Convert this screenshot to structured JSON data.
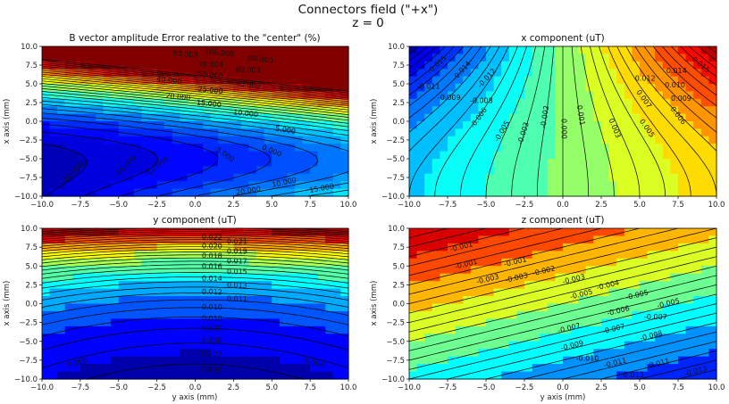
{
  "figure": {
    "suptitle_line1": "Connectors field (\"+x\")",
    "suptitle_line2": "z = 0"
  },
  "chart_data": [
    {
      "type": "contour",
      "title": "B vector amplitude Error relative to the \"center\" (%)",
      "title_text": "B vector amplitude Error realative to the \"center\" (%)",
      "xlabel": "",
      "ylabel": "x axis (mm)",
      "xlim": [
        -10,
        10
      ],
      "ylim": [
        -10,
        10
      ],
      "xticks": [
        "−10.0",
        "−7.5",
        "−5.0",
        "−2.5",
        "0.0",
        "2.5",
        "5.0",
        "7.5",
        "10.0"
      ],
      "yticks": [
        "−10.0",
        "−7.5",
        "−5.0",
        "−2.5",
        "0.0",
        "2.5",
        "5.0",
        "7.5",
        "10.0"
      ],
      "levels_range": [
        -25,
        110
      ],
      "line_step": 5,
      "fill_step": 5,
      "colormap": "jet",
      "contour_labels": [
        {
          "text": "100.000",
          "x": 1,
          "y": 9.7
        },
        {
          "text": "90.000",
          "x": 1,
          "y": 9.0
        },
        {
          "text": "80.000",
          "x": 1,
          "y": 8.3
        },
        {
          "text": "70.000",
          "x": 1,
          "y": 7.6
        },
        {
          "text": "60.000",
          "x": 1,
          "y": 6.9
        },
        {
          "text": "50.000",
          "x": 1,
          "y": 6.2
        },
        {
          "text": "40.000",
          "x": -1.7,
          "y": 5.5
        },
        {
          "text": "30.000",
          "x": 1,
          "y": 4.9
        },
        {
          "text": "25.000",
          "x": 1,
          "y": 4.2
        },
        {
          "text": "20.000",
          "x": -0.3,
          "y": 3.3
        },
        {
          "text": "15.000",
          "x": 0.9,
          "y": 2.4
        },
        {
          "text": "10.000",
          "x": 3.3,
          "y": 1.1
        },
        {
          "text": "5.000",
          "x": 5.9,
          "y": -1.1
        },
        {
          "text": "0.000",
          "x": 5.0,
          "y": -3.9
        },
        {
          "text": "-5.000",
          "x": 1.9,
          "y": -4.3
        },
        {
          "text": "-10.000",
          "x": -2.5,
          "y": -6.0
        },
        {
          "text": "-15.000",
          "x": -4.6,
          "y": -6.0
        },
        {
          "text": "-20.000",
          "x": -8.0,
          "y": -6.9
        },
        {
          "text": "10.000",
          "x": 5.8,
          "y": -8.1
        },
        {
          "text": "15.000",
          "x": 5.8,
          "y": -8.9
        },
        {
          "text": "20.000",
          "x": 5.8,
          "y": -9.7
        }
      ]
    },
    {
      "type": "contour",
      "title": "x component (uT)",
      "title_text": "x component (uT)",
      "xlabel": "",
      "ylabel": "x axis (mm)",
      "xlim": [
        -10,
        10
      ],
      "ylim": [
        -10,
        10
      ],
      "xticks": [
        "−10.0",
        "−7.5",
        "−5.0",
        "−2.5",
        "0.0",
        "2.5",
        "5.0",
        "7.5",
        "10.0"
      ],
      "yticks": [
        "−10.0",
        "−7.5",
        "−5.0",
        "−2.5",
        "0.0",
        "2.5",
        "5.0",
        "7.5",
        "10.0"
      ],
      "levels_range": [
        -0.018,
        0.018
      ],
      "line_step": 0.001,
      "fill_step": 0.0025,
      "colormap": "jet",
      "contour_labels": [
        {
          "text": "-0.015",
          "x": -8.2,
          "y": 7.6
        },
        {
          "text": "-0.014",
          "x": -6.6,
          "y": 6.8
        },
        {
          "text": "-0.012",
          "x": -6.6,
          "y": 5.8
        },
        {
          "text": "-0.011",
          "x": -6.3,
          "y": 4.7
        },
        {
          "text": "-0.009",
          "x": -7.4,
          "y": 3.2
        },
        {
          "text": "-0.008",
          "x": -5.3,
          "y": 2.8
        },
        {
          "text": "-0.006",
          "x": -5.5,
          "y": 0.5
        },
        {
          "text": "-0.005",
          "x": -4.8,
          "y": -1.3
        },
        {
          "text": "-0.003",
          "x": -2.6,
          "y": -1.6
        },
        {
          "text": "-0.002",
          "x": -1.2,
          "y": 0.6
        },
        {
          "text": "0.000",
          "x": 0.1,
          "y": -1.0
        },
        {
          "text": "0.001",
          "x": 1.2,
          "y": 0.8
        },
        {
          "text": "0.003",
          "x": 3.4,
          "y": -0.9
        },
        {
          "text": "0.005",
          "x": 5.5,
          "y": -0.9
        },
        {
          "text": "0.006",
          "x": 5.9,
          "y": 0.8
        },
        {
          "text": "0.007",
          "x": 5.3,
          "y": 3.0
        },
        {
          "text": "0.009",
          "x": 7.7,
          "y": 3.1
        },
        {
          "text": "0.010",
          "x": 7.3,
          "y": 4.9
        },
        {
          "text": "0.012",
          "x": 7.8,
          "y": 5.8
        },
        {
          "text": "0.014",
          "x": 7.4,
          "y": 6.8
        },
        {
          "text": "0.015",
          "x": 9.0,
          "y": 7.6
        }
      ]
    },
    {
      "type": "contour",
      "title": "y component (uT)",
      "title_text": "y component (uT)",
      "xlabel": "y axis (mm)",
      "ylabel": "x axis (mm)",
      "xlim": [
        -10,
        10
      ],
      "ylim": [
        -10,
        10
      ],
      "xticks": [
        "−10.0",
        "−7.5",
        "−5.0",
        "−2.5",
        "0.0",
        "2.5",
        "5.0",
        "7.5",
        "10.0"
      ],
      "yticks": [
        "−10.0",
        "−7.5",
        "−5.0",
        "−2.5",
        "0.0",
        "2.5",
        "5.0",
        "7.5",
        "10.0"
      ],
      "levels_range": [
        0.004,
        0.034
      ],
      "line_step": 0.001,
      "fill_step": 0.0025,
      "colormap": "jet",
      "contour_labels": [
        {
          "text": "0.006",
          "x": 1.1,
          "y": -8.7
        },
        {
          "text": "0.007",
          "x": 1.1,
          "y": -6.6
        },
        {
          "text": "0.008",
          "x": 1.1,
          "y": -4.8
        },
        {
          "text": "0.009",
          "x": 1.1,
          "y": -3.2
        },
        {
          "text": "0.010",
          "x": 1.1,
          "y": -1.9
        },
        {
          "text": "0.010",
          "x": 1.1,
          "y": -0.4
        },
        {
          "text": "0.011",
          "x": 1.1,
          "y": 0.7
        },
        {
          "text": "0.012",
          "x": 1.1,
          "y": 1.6
        },
        {
          "text": "0.013",
          "x": 1.1,
          "y": 2.5
        },
        {
          "text": "0.014",
          "x": 1.1,
          "y": 3.4
        },
        {
          "text": "0.015",
          "x": 1.1,
          "y": 4.3
        },
        {
          "text": "0.016",
          "x": 1.1,
          "y": 5.0
        },
        {
          "text": "0.017",
          "x": 1.1,
          "y": 5.7
        },
        {
          "text": "0.018",
          "x": 1.1,
          "y": 6.4
        },
        {
          "text": "0.019",
          "x": 1.1,
          "y": 7.0
        },
        {
          "text": "0.020",
          "x": 1.1,
          "y": 7.7
        },
        {
          "text": "0.021",
          "x": 1.1,
          "y": 8.3
        },
        {
          "text": "0.022",
          "x": 1.1,
          "y": 8.9
        },
        {
          "text": "0.006",
          "x": -7.7,
          "y": -7.8
        },
        {
          "text": "0.006",
          "x": 7.8,
          "y": -7.8
        }
      ]
    },
    {
      "type": "contour",
      "title": "z component (uT)",
      "title_text": "z component (uT)",
      "xlabel": "y axis (mm)",
      "ylabel": "x axis (mm)",
      "xlim": [
        -10,
        10
      ],
      "ylim": [
        -10,
        10
      ],
      "xticks": [
        "−10.0",
        "−7.5",
        "−5.0",
        "−2.5",
        "0.0",
        "2.5",
        "5.0",
        "7.5",
        "10.0"
      ],
      "yticks": [
        "−10.0",
        "−7.5",
        "−5.0",
        "−2.5",
        "0.0",
        "2.5",
        "5.0",
        "7.5",
        "10.0"
      ],
      "levels_range": [
        -0.0135,
        0.0005
      ],
      "line_step": 0.0005,
      "fill_step": 0.0015,
      "colormap": "jet",
      "contour_labels": [
        {
          "text": "-0.001",
          "x": -6.6,
          "y": 7.6
        },
        {
          "text": "-0.001",
          "x": -6.3,
          "y": 5.3
        },
        {
          "text": "-0.001",
          "x": -3.1,
          "y": 5.6
        },
        {
          "text": "-0.002",
          "x": -4.5,
          "y": 4.4
        },
        {
          "text": "-0.003",
          "x": -4.9,
          "y": 3.3
        },
        {
          "text": "-0.003",
          "x": -2.2,
          "y": 3.5
        },
        {
          "text": "-0.003",
          "x": 0.7,
          "y": 3.3
        },
        {
          "text": "-0.004",
          "x": 1.3,
          "y": 2.5
        },
        {
          "text": "-0.005",
          "x": 1.2,
          "y": 1.3
        },
        {
          "text": "-0.005",
          "x": 3.2,
          "y": 1.2
        },
        {
          "text": "-0.005",
          "x": 3.6,
          "y": 0.1
        },
        {
          "text": "-0.006",
          "x": 3.6,
          "y": -0.9
        },
        {
          "text": "-0.007",
          "x": 3.6,
          "y": -1.7
        },
        {
          "text": "-0.007",
          "x": 0.4,
          "y": -3.2
        },
        {
          "text": "-0.007",
          "x": 3.3,
          "y": -3.3
        },
        {
          "text": "-0.008",
          "x": 3.3,
          "y": -4.2
        },
        {
          "text": "-0.009",
          "x": 0.6,
          "y": -5.5
        },
        {
          "text": "-0.010",
          "x": 1.6,
          "y": -7.2
        },
        {
          "text": "-0.011",
          "x": 3.4,
          "y": -7.8
        },
        {
          "text": "-0.011",
          "x": 6.2,
          "y": -7.9
        },
        {
          "text": "-0.013",
          "x": 6.2,
          "y": -8.9
        },
        {
          "text": "-0.013",
          "x": 8.6,
          "y": -9.4
        }
      ]
    }
  ]
}
